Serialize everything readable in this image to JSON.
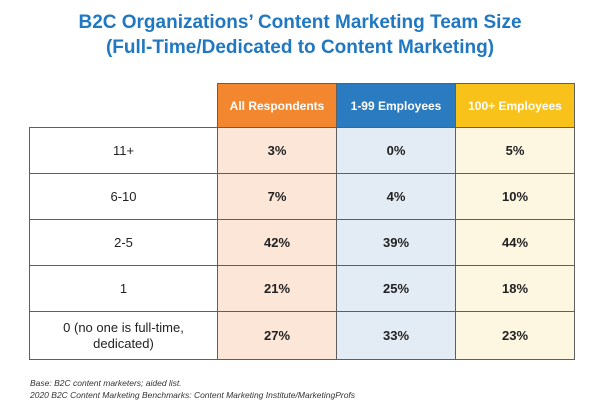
{
  "chart_data": {
    "type": "table",
    "title_line1": "B2C Organizations’ Content Marketing Team Size",
    "title_line2": "(Full-Time/Dedicated to Content Marketing)",
    "columns": [
      "All Respondents",
      "1-99 Employees",
      "100+ Employees"
    ],
    "column_colors": [
      "#f2872f",
      "#2a7bc0",
      "#f8c21a"
    ],
    "rows": [
      {
        "label": "11+",
        "values": [
          "3%",
          "0%",
          "5%"
        ]
      },
      {
        "label": "6-10",
        "values": [
          "7%",
          "4%",
          "10%"
        ]
      },
      {
        "label": "2-5",
        "values": [
          "42%",
          "39%",
          "44%"
        ]
      },
      {
        "label": "1",
        "values": [
          "21%",
          "25%",
          "18%"
        ]
      },
      {
        "label": "0 (no one is full-time, dedicated)",
        "label_line1": "0 (no one is full-time,",
        "label_line2": "dedicated)",
        "values": [
          "27%",
          "33%",
          "23%"
        ]
      }
    ],
    "footnote_line1": "Base: B2C content marketers; aided list.",
    "footnote_line2": "2020 B2C Content Marketing Benchmarks: Content Marketing Institute/MarketingProfs"
  }
}
